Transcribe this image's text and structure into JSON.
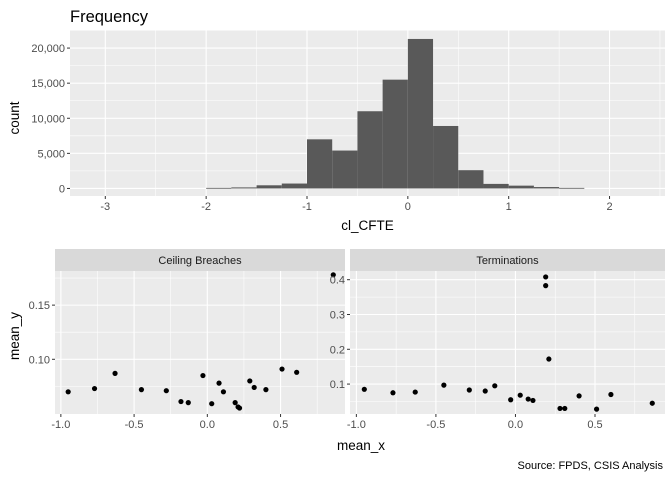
{
  "chart_data": [
    {
      "type": "bar",
      "title": "Frequency",
      "xlabel": "cl_CFTE",
      "ylabel": "count",
      "xlim": [
        -3.35,
        2.55
      ],
      "ylim": [
        -1075,
        22575
      ],
      "xticks": [
        "-3",
        "-2",
        "-1",
        "0",
        "1",
        "2"
      ],
      "xtick_values": [
        -3,
        -2,
        -1,
        0,
        1,
        2
      ],
      "yticks": [
        "0",
        "5,000",
        "10,000",
        "15,000",
        "20,000"
      ],
      "ytick_values": [
        0,
        5000,
        10000,
        15000,
        20000
      ],
      "grid": true,
      "bar_color": "#595959",
      "bins": [
        {
          "x0": -2.0,
          "x1": -1.75,
          "count": 80
        },
        {
          "x0": -1.75,
          "x1": -1.5,
          "count": 150
        },
        {
          "x0": -1.5,
          "x1": -1.25,
          "count": 450
        },
        {
          "x0": -1.25,
          "x1": -1.0,
          "count": 700
        },
        {
          "x0": -1.0,
          "x1": -0.75,
          "count": 7000
        },
        {
          "x0": -0.75,
          "x1": -0.5,
          "count": 5400
        },
        {
          "x0": -0.5,
          "x1": -0.25,
          "count": 11000
        },
        {
          "x0": -0.25,
          "x1": 0.0,
          "count": 15500
        },
        {
          "x0": 0.0,
          "x1": 0.25,
          "count": 21300
        },
        {
          "x0": 0.25,
          "x1": 0.5,
          "count": 8900
        },
        {
          "x0": 0.5,
          "x1": 0.75,
          "count": 2600
        },
        {
          "x0": 0.75,
          "x1": 1.0,
          "count": 650
        },
        {
          "x0": 1.0,
          "x1": 1.25,
          "count": 400
        },
        {
          "x0": 1.25,
          "x1": 1.5,
          "count": 200
        },
        {
          "x0": 1.5,
          "x1": 1.75,
          "count": 80
        }
      ]
    },
    {
      "type": "scatter",
      "facet": "Ceiling Breaches",
      "xlabel": "mean_x",
      "ylabel": "mean_y",
      "xlim": [
        -1.04,
        0.94
      ],
      "ylim": [
        0.0495,
        0.1815
      ],
      "xticks": [
        "-1.0",
        "-0.5",
        "0.0",
        "0.5"
      ],
      "xtick_values": [
        -1.0,
        -0.5,
        0.0,
        0.5
      ],
      "yticks": [
        "0.10",
        "0.15"
      ],
      "ytick_values": [
        0.1,
        0.15
      ],
      "grid": true,
      "points": [
        {
          "x": -0.95,
          "y": 0.07
        },
        {
          "x": -0.77,
          "y": 0.073
        },
        {
          "x": -0.63,
          "y": 0.087
        },
        {
          "x": -0.45,
          "y": 0.072
        },
        {
          "x": -0.28,
          "y": 0.071
        },
        {
          "x": -0.18,
          "y": 0.061
        },
        {
          "x": -0.13,
          "y": 0.06
        },
        {
          "x": -0.03,
          "y": 0.085
        },
        {
          "x": 0.03,
          "y": 0.059
        },
        {
          "x": 0.08,
          "y": 0.078
        },
        {
          "x": 0.11,
          "y": 0.07
        },
        {
          "x": 0.19,
          "y": 0.06
        },
        {
          "x": 0.21,
          "y": 0.056
        },
        {
          "x": 0.22,
          "y": 0.055
        },
        {
          "x": 0.29,
          "y": 0.08
        },
        {
          "x": 0.32,
          "y": 0.074
        },
        {
          "x": 0.4,
          "y": 0.072
        },
        {
          "x": 0.51,
          "y": 0.091
        },
        {
          "x": 0.61,
          "y": 0.088
        },
        {
          "x": 0.86,
          "y": 0.178
        }
      ]
    },
    {
      "type": "scatter",
      "facet": "Terminations",
      "xlabel": "mean_x",
      "ylabel": "mean_y",
      "xlim": [
        -1.04,
        0.94
      ],
      "ylim": [
        0.014,
        0.425
      ],
      "xticks": [
        "-1.0",
        "-0.5",
        "0.0",
        "0.5"
      ],
      "xtick_values": [
        -1.0,
        -0.5,
        0.0,
        0.5
      ],
      "yticks": [
        "0.1",
        "0.2",
        "0.3",
        "0.4"
      ],
      "ytick_values": [
        0.1,
        0.2,
        0.3,
        0.4
      ],
      "grid": true,
      "points": [
        {
          "x": -0.95,
          "y": 0.085
        },
        {
          "x": -0.77,
          "y": 0.075
        },
        {
          "x": -0.63,
          "y": 0.077
        },
        {
          "x": -0.45,
          "y": 0.097
        },
        {
          "x": -0.29,
          "y": 0.083
        },
        {
          "x": -0.19,
          "y": 0.08
        },
        {
          "x": -0.13,
          "y": 0.095
        },
        {
          "x": -0.03,
          "y": 0.055
        },
        {
          "x": 0.03,
          "y": 0.068
        },
        {
          "x": 0.08,
          "y": 0.057
        },
        {
          "x": 0.11,
          "y": 0.053
        },
        {
          "x": 0.19,
          "y": 0.408
        },
        {
          "x": 0.19,
          "y": 0.383
        },
        {
          "x": 0.21,
          "y": 0.172
        },
        {
          "x": 0.28,
          "y": 0.03
        },
        {
          "x": 0.31,
          "y": 0.03
        },
        {
          "x": 0.4,
          "y": 0.066
        },
        {
          "x": 0.51,
          "y": 0.028
        },
        {
          "x": 0.6,
          "y": 0.07
        },
        {
          "x": 0.86,
          "y": 0.045
        }
      ]
    }
  ],
  "shared_xlabel": "mean_x",
  "caption": "Source: FPDS, CSIS Analysis",
  "colors": {
    "panel": "#ebebeb",
    "grid_major": "#ffffff",
    "strip": "#d9d9d9",
    "points": "#000000"
  }
}
